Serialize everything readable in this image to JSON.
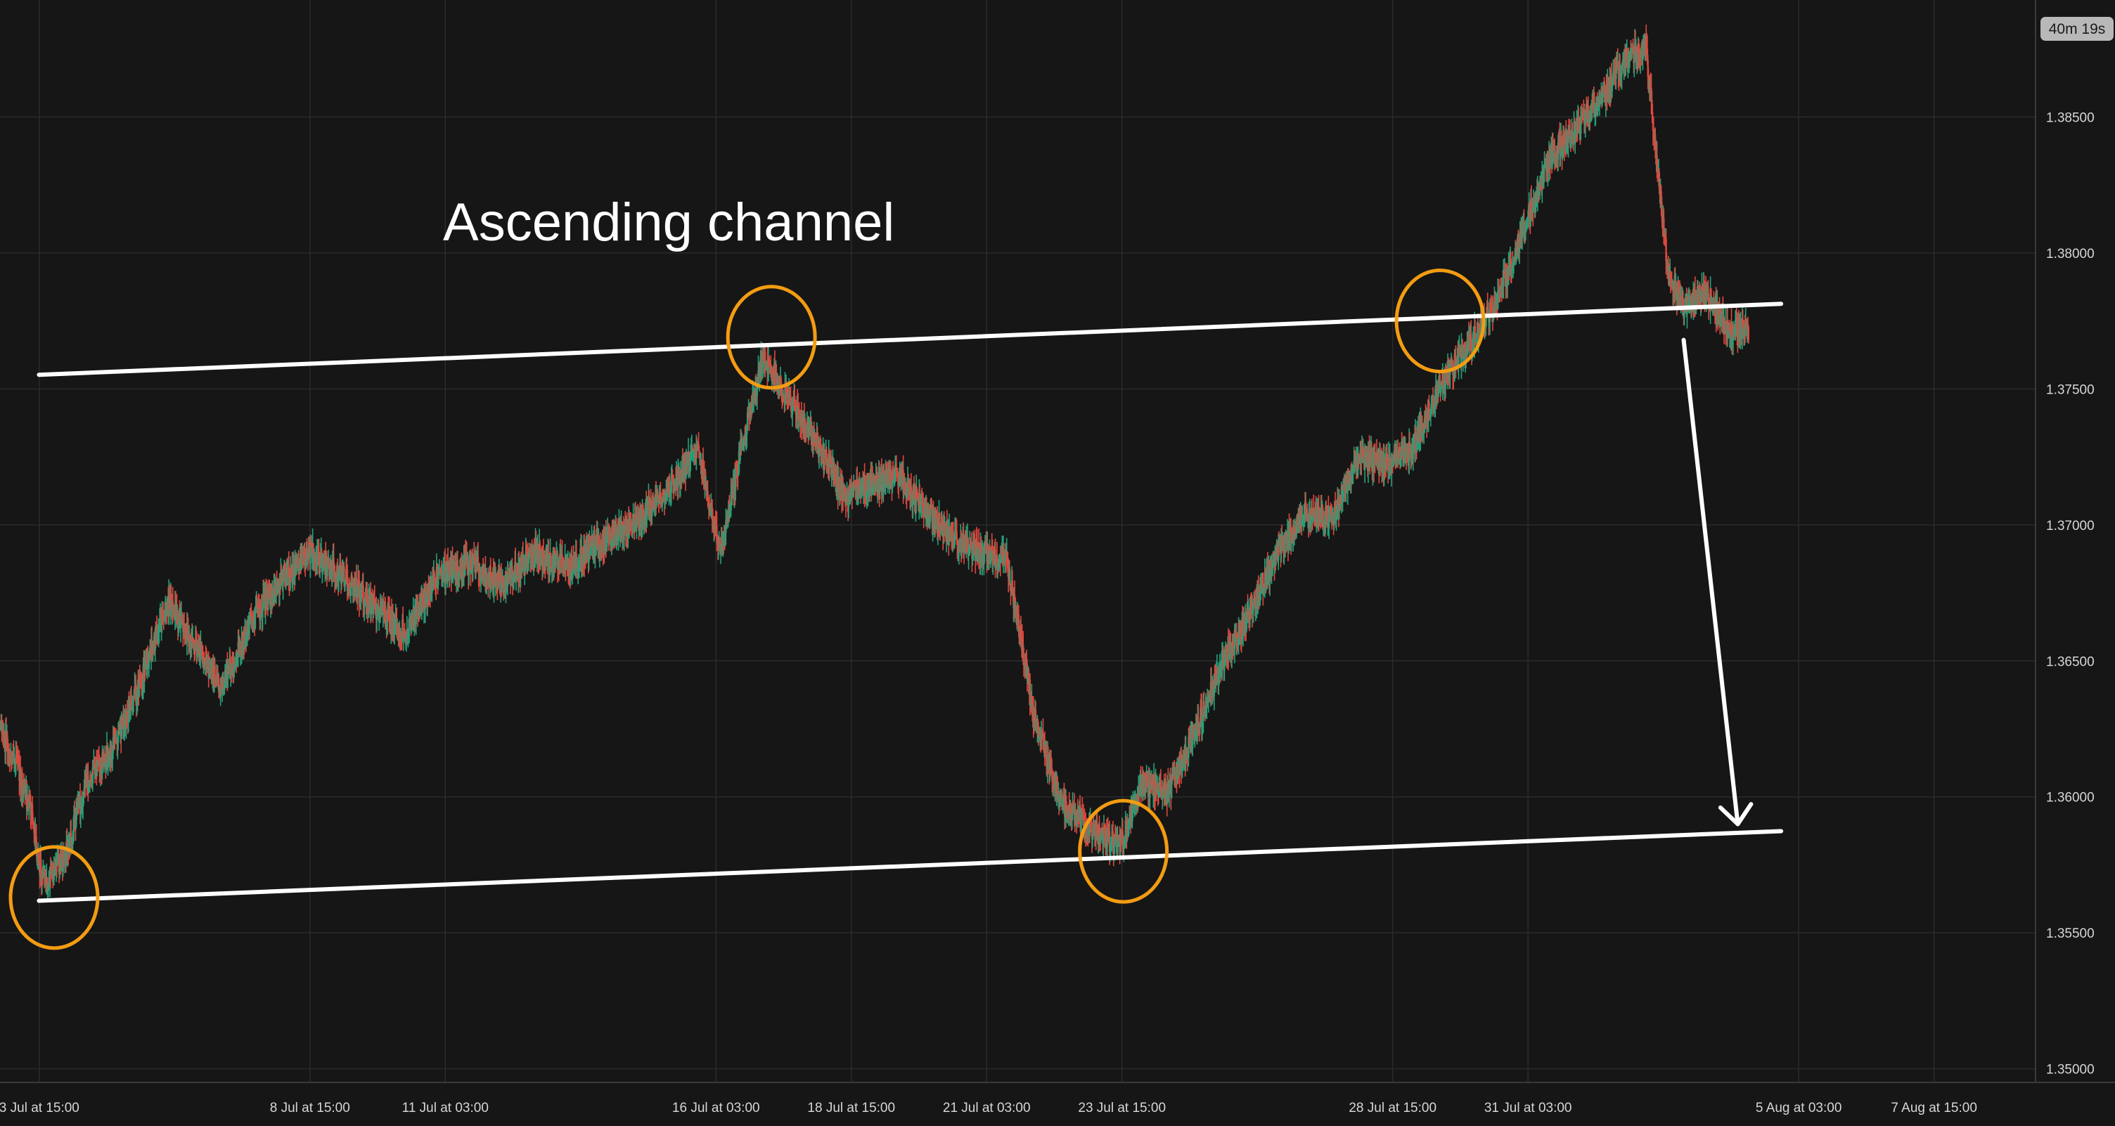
{
  "timer": "40m 19s",
  "annotation_title": "Ascending channel",
  "colors": {
    "background": "#161616",
    "grid": "#2b2b2b",
    "up_candle": "#26a17b",
    "down_candle": "#e0483e",
    "trend_lines": "#ffffff",
    "highlight_circles": "#f39c12",
    "timer_badge": "#b8b8b8"
  },
  "chart_data": {
    "type": "candlestick",
    "title": "",
    "y_ticks": [
      "1.38500",
      "1.38000",
      "1.37500",
      "1.37000",
      "1.36500",
      "1.36000",
      "1.35500",
      "1.35000"
    ],
    "x_ticks": [
      "3 Jul at 15:00",
      "8 Jul at 15:00",
      "11 Jul at 03:00",
      "16 Jul at 03:00",
      "18 Jul at 15:00",
      "21 Jul at 03:00",
      "23 Jul at 15:00",
      "28 Jul at 15:00",
      "31 Jul at 03:00",
      "5 Aug at 03:00",
      "7 Aug at 15:00"
    ],
    "x_tick_days": [
      3.625,
      8.625,
      11.125,
      16.125,
      18.625,
      21.125,
      23.625,
      28.625,
      31.125,
      36.125,
      38.625
    ],
    "x_range_days": [
      2.9,
      40.5
    ],
    "ylim": [
      1.3495,
      1.3893
    ],
    "price_path_days": [
      2.9,
      3.2,
      3.5,
      3.62,
      3.75,
      4.1,
      4.5,
      5.0,
      5.5,
      6.0,
      6.5,
      7.0,
      7.5,
      8.0,
      8.6,
      9.2,
      9.8,
      10.4,
      11.0,
      11.6,
      12.2,
      12.8,
      13.4,
      14.0,
      14.6,
      15.2,
      15.8,
      16.2,
      16.6,
      17.0,
      17.5,
      18.0,
      18.5,
      19.0,
      19.5,
      20.0,
      20.5,
      21.0,
      21.5,
      22.0,
      22.5,
      23.0,
      23.6,
      24.0,
      24.5,
      25.0,
      25.5,
      26.0,
      26.5,
      27.0,
      27.5,
      28.0,
      28.5,
      29.0,
      29.5,
      30.0,
      30.5,
      31.0,
      31.5,
      32.0,
      32.5,
      33.0,
      33.3,
      33.7,
      34.0,
      34.4,
      34.8,
      35.2
    ],
    "price_path_close": [
      1.3625,
      1.3612,
      1.3592,
      1.3575,
      1.3568,
      1.3578,
      1.3605,
      1.3618,
      1.3642,
      1.3672,
      1.3656,
      1.364,
      1.3663,
      1.3678,
      1.369,
      1.3682,
      1.367,
      1.366,
      1.3682,
      1.3686,
      1.3678,
      1.369,
      1.3684,
      1.3694,
      1.37,
      1.3712,
      1.3728,
      1.369,
      1.3728,
      1.3762,
      1.3745,
      1.373,
      1.371,
      1.3715,
      1.3718,
      1.3705,
      1.3695,
      1.369,
      1.3687,
      1.363,
      1.3598,
      1.3588,
      1.3582,
      1.3605,
      1.3602,
      1.3625,
      1.365,
      1.3668,
      1.369,
      1.3705,
      1.3702,
      1.3725,
      1.3722,
      1.3728,
      1.3752,
      1.3765,
      1.378,
      1.3806,
      1.3835,
      1.3845,
      1.3858,
      1.3873,
      1.3875,
      1.3795,
      1.378,
      1.3786,
      1.3772,
      1.3772
    ],
    "trend_lines": [
      {
        "role": "upper channel line",
        "from": {
          "day": 3.62,
          "price": 1.37552
        },
        "to": {
          "day": 35.8,
          "price": 1.37813
        }
      },
      {
        "role": "lower channel line",
        "from": {
          "day": 3.62,
          "price": 1.35618
        },
        "to": {
          "day": 35.8,
          "price": 1.35874
        }
      }
    ],
    "projection_arrow": {
      "from": {
        "day": 34.0,
        "price": 1.3768
      },
      "to": {
        "day": 35.0,
        "price": 1.359
      }
    },
    "highlighted_touches": [
      {
        "day": 3.9,
        "price": 1.3563
      },
      {
        "day": 17.15,
        "price": 1.3769
      },
      {
        "day": 23.65,
        "price": 1.358
      },
      {
        "day": 29.5,
        "price": 1.3775
      }
    ],
    "grid": true,
    "legend": "none"
  }
}
